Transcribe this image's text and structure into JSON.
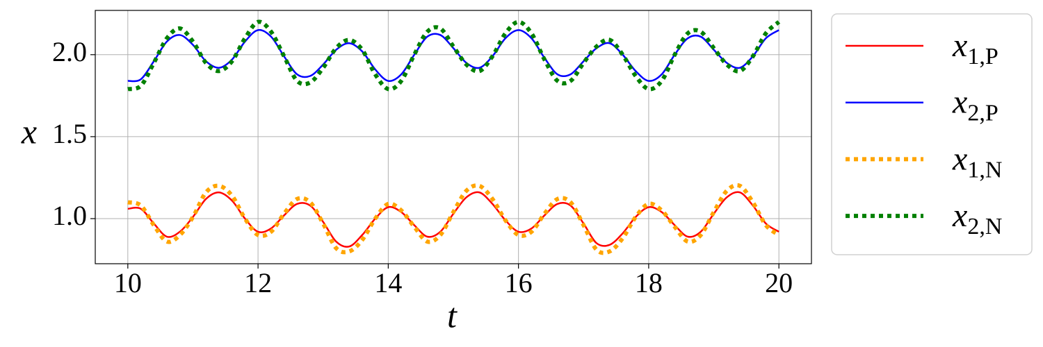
{
  "chart_data": {
    "type": "line",
    "x_label": "t",
    "y_label": "x",
    "x": [
      10,
      10.2,
      10.4,
      10.6,
      10.8,
      11,
      11.2,
      11.4,
      11.6,
      11.8,
      12,
      12.2,
      12.4,
      12.6,
      12.8,
      13,
      13.2,
      13.4,
      13.6,
      13.8,
      14,
      14.2,
      14.4,
      14.6,
      14.8,
      15,
      15.2,
      15.4,
      15.6,
      15.8,
      16,
      16.2,
      16.4,
      16.6,
      16.8,
      17,
      17.2,
      17.4,
      17.6,
      17.8,
      18,
      18.2,
      18.4,
      18.6,
      18.8,
      19,
      19.2,
      19.4,
      19.6,
      19.8,
      20
    ],
    "series": [
      {
        "name": "x1,P",
        "color": "#ff0000",
        "linestyle": "solid",
        "values": [
          1.06,
          1.06,
          0.97,
          0.89,
          0.92,
          1.01,
          1.12,
          1.16,
          1.11,
          1.0,
          0.92,
          0.94,
          1.02,
          1.09,
          1.08,
          0.98,
          0.86,
          0.83,
          0.9,
          1.0,
          1.07,
          1.04,
          0.96,
          0.89,
          0.92,
          1.03,
          1.13,
          1.16,
          1.09,
          0.99,
          0.92,
          0.94,
          1.02,
          1.09,
          1.08,
          0.97,
          0.85,
          0.84,
          0.91,
          1.01,
          1.07,
          1.04,
          0.96,
          0.89,
          0.92,
          1.03,
          1.13,
          1.16,
          1.08,
          0.97,
          0.92
        ]
      },
      {
        "name": "x2,P",
        "color": "#0000ff",
        "linestyle": "solid",
        "values": [
          1.84,
          1.85,
          1.96,
          2.08,
          2.12,
          2.06,
          1.96,
          1.92,
          1.97,
          2.08,
          2.15,
          2.11,
          1.99,
          1.88,
          1.87,
          1.94,
          2.03,
          2.07,
          2.02,
          1.91,
          1.84,
          1.88,
          2.0,
          2.11,
          2.12,
          2.04,
          1.95,
          1.92,
          1.99,
          2.1,
          2.15,
          2.1,
          1.98,
          1.88,
          1.88,
          1.96,
          2.04,
          2.07,
          2.0,
          1.9,
          1.84,
          1.88,
          2.0,
          2.1,
          2.11,
          2.03,
          1.95,
          1.92,
          1.99,
          2.1,
          2.15
        ]
      },
      {
        "name": "x1,N",
        "color": "#ffa500",
        "linestyle": "dotted",
        "values": [
          1.1,
          1.08,
          0.96,
          0.86,
          0.9,
          1.01,
          1.16,
          1.2,
          1.14,
          1.0,
          0.9,
          0.92,
          1.03,
          1.12,
          1.1,
          0.97,
          0.82,
          0.8,
          0.87,
          1.0,
          1.09,
          1.05,
          0.95,
          0.86,
          0.9,
          1.04,
          1.17,
          1.2,
          1.12,
          0.99,
          0.9,
          0.92,
          1.03,
          1.12,
          1.1,
          0.96,
          0.81,
          0.8,
          0.88,
          1.01,
          1.09,
          1.05,
          0.95,
          0.86,
          0.9,
          1.04,
          1.17,
          1.2,
          1.1,
          0.96,
          0.9
        ]
      },
      {
        "name": "x2,N",
        "color": "#008000",
        "linestyle": "dotted",
        "values": [
          1.79,
          1.81,
          1.95,
          2.1,
          2.16,
          2.08,
          1.95,
          1.9,
          1.96,
          2.1,
          2.2,
          2.14,
          1.99,
          1.84,
          1.83,
          1.92,
          2.04,
          2.09,
          2.03,
          1.88,
          1.79,
          1.84,
          2.0,
          2.14,
          2.16,
          2.05,
          1.94,
          1.9,
          1.99,
          2.13,
          2.2,
          2.13,
          1.97,
          1.84,
          1.84,
          1.95,
          2.05,
          2.09,
          2.0,
          1.87,
          1.79,
          1.84,
          2.0,
          2.13,
          2.14,
          2.04,
          1.94,
          1.9,
          1.99,
          2.13,
          2.2
        ]
      }
    ],
    "xlim": [
      9.5,
      20.5
    ],
    "xticks": [
      10,
      12,
      14,
      16,
      18,
      20
    ],
    "ylim": [
      0.725,
      2.27
    ],
    "yticks": [
      {
        "value": 1,
        "label": "1.0"
      },
      {
        "value": 1.5,
        "label": "1.5"
      },
      {
        "value": 2,
        "label": "2.0"
      }
    ],
    "grid": true,
    "legend": "outside right"
  }
}
